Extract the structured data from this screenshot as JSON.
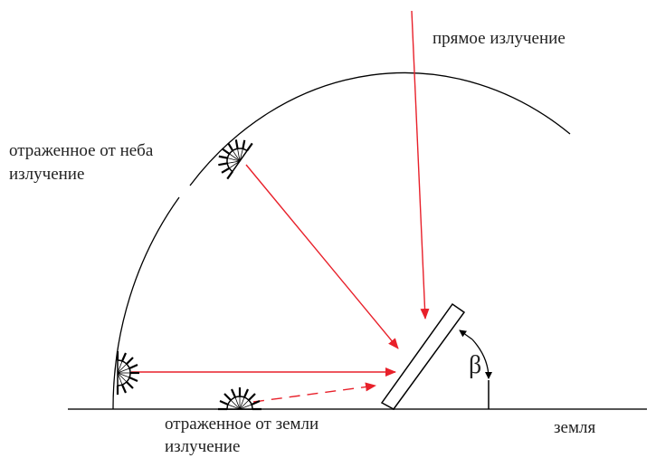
{
  "labels": {
    "direct": "прямое излучение",
    "sky": [
      "отраженное от неба",
      "излучение"
    ],
    "ground": [
      "отраженное от земли",
      "излучение"
    ],
    "earth": "земля",
    "angle": "β"
  }
}
